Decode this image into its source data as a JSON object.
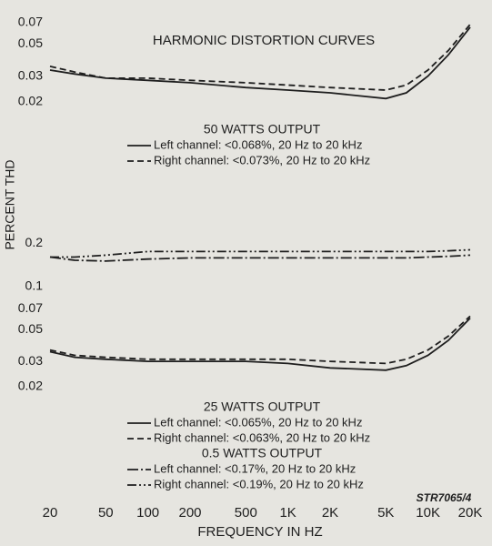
{
  "chart_data": [
    {
      "type": "line",
      "title": "HARMONIC DISTORTION CURVES",
      "y_label": "PERCENT THD",
      "xscale": "log",
      "yscale": "log",
      "xlim": [
        20,
        20000
      ],
      "ylim": [
        0.018,
        0.075
      ],
      "yticks": [
        0.07,
        0.05,
        0.03,
        0.02
      ],
      "x": [
        20,
        30,
        50,
        100,
        200,
        500,
        1000,
        2000,
        5000,
        7000,
        10000,
        14000,
        20000
      ],
      "legend_groups": [
        {
          "title": "50 WATTS OUTPUT",
          "series": [
            {
              "name": "Left channel: <0.068%, 20 Hz to 20 kHz",
              "color": "#1e1e1e",
              "dash": "solid",
              "values": [
                0.033,
                0.031,
                0.029,
                0.028,
                0.027,
                0.025,
                0.024,
                0.023,
                0.021,
                0.023,
                0.03,
                0.042,
                0.065
              ]
            },
            {
              "name": "Right channel: <0.073%, 20 Hz to 20 kHz",
              "color": "#1e1e1e",
              "dash": "dashed",
              "values": [
                0.035,
                0.032,
                0.029,
                0.029,
                0.028,
                0.027,
                0.026,
                0.025,
                0.024,
                0.026,
                0.033,
                0.045,
                0.068
              ]
            }
          ]
        }
      ]
    },
    {
      "type": "line",
      "x_label": "FREQUENCY IN HZ",
      "annotation": "STR7065/4",
      "xscale": "log",
      "yscale": "log",
      "xlim": [
        20,
        20000
      ],
      "ylim": [
        0.018,
        0.25
      ],
      "xticks": [
        20,
        50,
        100,
        200,
        500,
        {
          "value": 1000,
          "label": "1K"
        },
        {
          "value": 2000,
          "label": "2K"
        },
        {
          "value": 5000,
          "label": "5K"
        },
        {
          "value": 10000,
          "label": "10K"
        },
        {
          "value": 20000,
          "label": "20K"
        }
      ],
      "yticks": [
        0.2,
        0.1,
        0.07,
        0.05,
        0.03,
        0.02
      ],
      "x": [
        20,
        30,
        50,
        100,
        200,
        500,
        1000,
        2000,
        5000,
        7000,
        10000,
        14000,
        20000
      ],
      "legend_groups": [
        {
          "title": "25 WATTS OUTPUT",
          "series": [
            {
              "name": "Left channel: <0.065%, 20 Hz to 20 kHz",
              "color": "#1e1e1e",
              "dash": "solid",
              "values": [
                0.035,
                0.032,
                0.031,
                0.03,
                0.03,
                0.03,
                0.029,
                0.027,
                0.026,
                0.028,
                0.033,
                0.042,
                0.06
              ]
            },
            {
              "name": "Right channel: <0.063%, 20 Hz to 20 kHz",
              "color": "#1e1e1e",
              "dash": "dashed",
              "values": [
                0.036,
                0.033,
                0.032,
                0.031,
                0.031,
                0.031,
                0.031,
                0.03,
                0.029,
                0.031,
                0.036,
                0.045,
                0.062
              ]
            }
          ]
        },
        {
          "title": "0.5 WATTS OUTPUT",
          "series": [
            {
              "name": "Left channel: <0.17%, 20 Hz to 20 kHz",
              "color": "#1e1e1e",
              "dash": "dashdot",
              "values": [
                0.16,
                0.152,
                0.15,
                0.155,
                0.158,
                0.158,
                0.158,
                0.158,
                0.158,
                0.158,
                0.16,
                0.162,
                0.165
              ]
            },
            {
              "name": "Right channel: <0.19%, 20 Hz to 20 kHz",
              "color": "#1e1e1e",
              "dash": "dashdotdot",
              "values": [
                0.16,
                0.16,
                0.165,
                0.175,
                0.175,
                0.175,
                0.175,
                0.175,
                0.175,
                0.175,
                0.175,
                0.177,
                0.18
              ]
            }
          ]
        }
      ]
    }
  ]
}
